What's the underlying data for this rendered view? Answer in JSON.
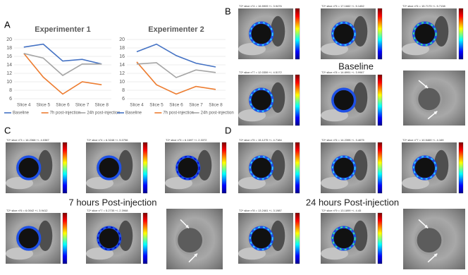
{
  "chart_data": [
    {
      "type": "line",
      "title": "Experimenter 1",
      "categories": [
        "Slice 4",
        "Slice 5",
        "Slice 6",
        "Slice 7",
        "Slice 8"
      ],
      "series": [
        {
          "name": "Baseline",
          "color": "#4472c4",
          "values": [
            18.2,
            18.9,
            14.9,
            15.3,
            14.2
          ]
        },
        {
          "name": "7h post-injection",
          "color": "#ed7d31",
          "values": [
            16.7,
            11.1,
            7.1,
            10,
            9.3
          ]
        },
        {
          "name": "24h post-injection",
          "color": "#a5a5a5",
          "values": [
            16.7,
            15.6,
            11.5,
            14.2,
            14.2
          ]
        }
      ],
      "ylim": [
        6,
        20
      ],
      "yticks": [
        6,
        8,
        10,
        12,
        14,
        16,
        18,
        20
      ],
      "grid": true,
      "legend": "bottom"
    },
    {
      "type": "line",
      "title": "Experimenter 2",
      "categories": [
        "Slice 4",
        "Slice 5",
        "Slice 6",
        "Slice 7",
        "Slice 8"
      ],
      "series": [
        {
          "name": "Baseline",
          "color": "#4472c4",
          "values": [
            17.1,
            18.9,
            16.2,
            14.4,
            13.5
          ]
        },
        {
          "name": "7h post-injection",
          "color": "#ed7d31",
          "values": [
            14.7,
            9.3,
            7.1,
            8.9,
            8.2
          ]
        },
        {
          "name": "24h post-injection",
          "color": "#a5a5a5",
          "values": [
            14.2,
            14.5,
            11,
            12.8,
            12.2
          ]
        }
      ],
      "ylim": [
        6,
        20
      ],
      "yticks": [
        6,
        8,
        10,
        12,
        14,
        16,
        18,
        20
      ],
      "grid": true,
      "legend": "bottom"
    }
  ],
  "figure": {
    "panels": [
      "A",
      "B",
      "C",
      "D"
    ],
    "sections": [
      "Baseline",
      "7 hours Post-injection",
      "24 hours Post-injection"
    ],
    "captions": [
      "T2* slice n°4 = 16.5909 +/- 3.9476",
      "T2* slice n°5 = 17.1662 +/- 5.1452",
      "T2* slice n°6 = 15.7173 +/- 5.7138",
      "T2* slice n°7 = 12.0359 +/- 4.5172",
      "T2* slice n°8 = 14.8991 +/- 3.9967",
      "T2* slice n°3 = 16.2368 +/- 4.0387",
      "T2* slice n°4 = 6.3248 +/- 5.0756",
      "T2* slice n°5 = 6.1697 +/- 2.3372",
      "T2* slice n°6 = 6.0042 +/- 3.9412",
      "T2* slice n°7 = 5.2735 +/- 2.3968",
      "T2* slice n°5 = 15.1275 +/- 4.7184",
      "T2* slice n°6 = 14.2395 +/- 3.4675",
      "T2* slice n°7 = 10.5469 +/- 4.169",
      "T2* slice n°8 = 13.2461 +/- 3.1987",
      "T2* slice n°9 = 13.1899 +/- 4.45"
    ]
  }
}
